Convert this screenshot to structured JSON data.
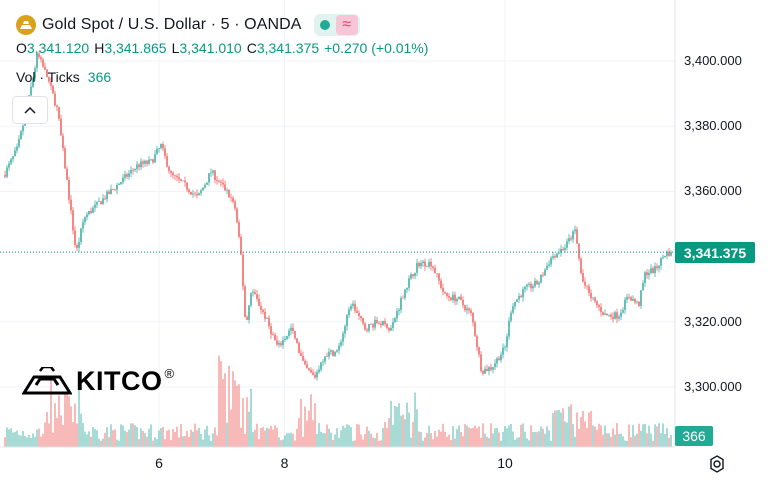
{
  "header": {
    "title": "Gold Spot / U.S. Dollar · 5 · OANDA",
    "ohlc": [
      {
        "key": "O",
        "value": "3,341.120"
      },
      {
        "key": "H",
        "value": "3,341.865"
      },
      {
        "key": "L",
        "value": "3,341.010"
      },
      {
        "key": "C",
        "value": "3,341.375"
      },
      {
        "key": "",
        "value": "+0.270 (+0.01%)"
      }
    ],
    "volume_label": "Vol · Ticks",
    "volume_value": "366"
  },
  "logo": {
    "text": "KITCO",
    "mark": "®"
  },
  "colors": {
    "up": "#26a69a",
    "down": "#ef5350",
    "accent": "#089981",
    "gold": "#d9a21b"
  },
  "price_tag": "3,341.375",
  "volume_tag": "366",
  "chart_data": {
    "type": "candlestick",
    "title": "Gold Spot / U.S. Dollar · 5 · OANDA",
    "interval": "5",
    "y_tick_labels": [
      "3,400.000",
      "3,380.000",
      "3,360.000",
      "3,320.000",
      "3,300.000"
    ],
    "y_ticks": [
      3400,
      3380,
      3360,
      3320,
      3300
    ],
    "x_tick_labels": [
      "6",
      "8",
      "10"
    ],
    "ylim": [
      3283,
      3416
    ],
    "grid": true,
    "last_price": 3341.375,
    "last_volume": 366,
    "x_ticks": [
      {
        "label": "6",
        "t": 0.232
      },
      {
        "label": "8",
        "t": 0.42
      },
      {
        "label": "10",
        "t": 0.75
      }
    ],
    "price_path": [
      [
        0.0,
        3365
      ],
      [
        0.02,
        3373
      ],
      [
        0.035,
        3386
      ],
      [
        0.05,
        3402
      ],
      [
        0.065,
        3395
      ],
      [
        0.08,
        3385
      ],
      [
        0.095,
        3362
      ],
      [
        0.108,
        3341
      ],
      [
        0.12,
        3352
      ],
      [
        0.14,
        3356
      ],
      [
        0.16,
        3360
      ],
      [
        0.18,
        3364
      ],
      [
        0.2,
        3368
      ],
      [
        0.22,
        3369
      ],
      [
        0.235,
        3374
      ],
      [
        0.25,
        3365
      ],
      [
        0.27,
        3362
      ],
      [
        0.29,
        3358
      ],
      [
        0.31,
        3366
      ],
      [
        0.33,
        3361
      ],
      [
        0.345,
        3356
      ],
      [
        0.355,
        3340
      ],
      [
        0.362,
        3318
      ],
      [
        0.37,
        3330
      ],
      [
        0.39,
        3322
      ],
      [
        0.41,
        3312
      ],
      [
        0.43,
        3318
      ],
      [
        0.45,
        3306
      ],
      [
        0.465,
        3303
      ],
      [
        0.48,
        3310
      ],
      [
        0.5,
        3311
      ],
      [
        0.52,
        3326
      ],
      [
        0.54,
        3318
      ],
      [
        0.56,
        3320
      ],
      [
        0.58,
        3318
      ],
      [
        0.6,
        3330
      ],
      [
        0.62,
        3338
      ],
      [
        0.64,
        3338
      ],
      [
        0.66,
        3328
      ],
      [
        0.68,
        3327
      ],
      [
        0.7,
        3322
      ],
      [
        0.715,
        3305
      ],
      [
        0.73,
        3306
      ],
      [
        0.75,
        3312
      ],
      [
        0.76,
        3325
      ],
      [
        0.78,
        3330
      ],
      [
        0.8,
        3332
      ],
      [
        0.82,
        3340
      ],
      [
        0.84,
        3343
      ],
      [
        0.855,
        3348
      ],
      [
        0.865,
        3333
      ],
      [
        0.88,
        3327
      ],
      [
        0.9,
        3322
      ],
      [
        0.92,
        3322
      ],
      [
        0.935,
        3328
      ],
      [
        0.95,
        3325
      ],
      [
        0.96,
        3335
      ],
      [
        0.975,
        3336
      ],
      [
        0.99,
        3341
      ],
      [
        1.0,
        3341.4
      ]
    ]
  }
}
